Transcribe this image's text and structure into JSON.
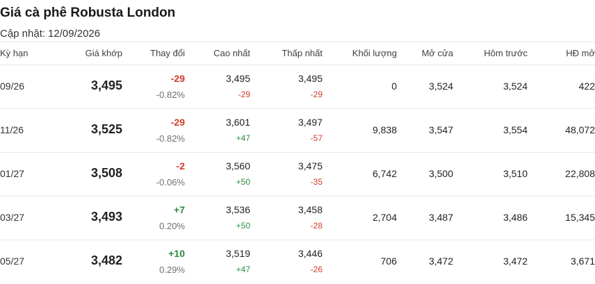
{
  "header": {
    "title": "Giá cà phê Robusta London",
    "updated_label": "Cập nhật:",
    "updated_value": "12/09/2026"
  },
  "columns": {
    "term": "Kỳ hạn",
    "last": "Giá khớp",
    "change": "Thay đổi",
    "high": "Cao nhất",
    "low": "Thấp nhất",
    "volume": "Khối lượng",
    "open": "Mở cửa",
    "prev": "Hôm trước",
    "oi": "HĐ mở"
  },
  "rows": [
    {
      "term": "09/26",
      "last": "3,495",
      "change": "-29",
      "change_pct": "-0.82%",
      "high": "3,495",
      "high_diff": "-29",
      "low": "3,495",
      "low_diff": "-29",
      "volume": "0",
      "open": "3,524",
      "prev": "3,524",
      "oi": "422"
    },
    {
      "term": "11/26",
      "last": "3,525",
      "change": "-29",
      "change_pct": "-0.82%",
      "high": "3,601",
      "high_diff": "+47",
      "low": "3,497",
      "low_diff": "-57",
      "volume": "9,838",
      "open": "3,547",
      "prev": "3,554",
      "oi": "48,072"
    },
    {
      "term": "01/27",
      "last": "3,508",
      "change": "-2",
      "change_pct": "-0.06%",
      "high": "3,560",
      "high_diff": "+50",
      "low": "3,475",
      "low_diff": "-35",
      "volume": "6,742",
      "open": "3,500",
      "prev": "3,510",
      "oi": "22,808"
    },
    {
      "term": "03/27",
      "last": "3,493",
      "change": "+7",
      "change_pct": "0.20%",
      "high": "3,536",
      "high_diff": "+50",
      "low": "3,458",
      "low_diff": "-28",
      "volume": "2,704",
      "open": "3,487",
      "prev": "3,486",
      "oi": "15,345"
    },
    {
      "term": "05/27",
      "last": "3,482",
      "change": "+10",
      "change_pct": "0.29%",
      "high": "3,519",
      "high_diff": "+47",
      "low": "3,446",
      "low_diff": "-26",
      "volume": "706",
      "open": "3,472",
      "prev": "3,472",
      "oi": "3,671"
    }
  ],
  "colors": {
    "negative": "#d33a2c",
    "positive": "#2e8b3e"
  }
}
